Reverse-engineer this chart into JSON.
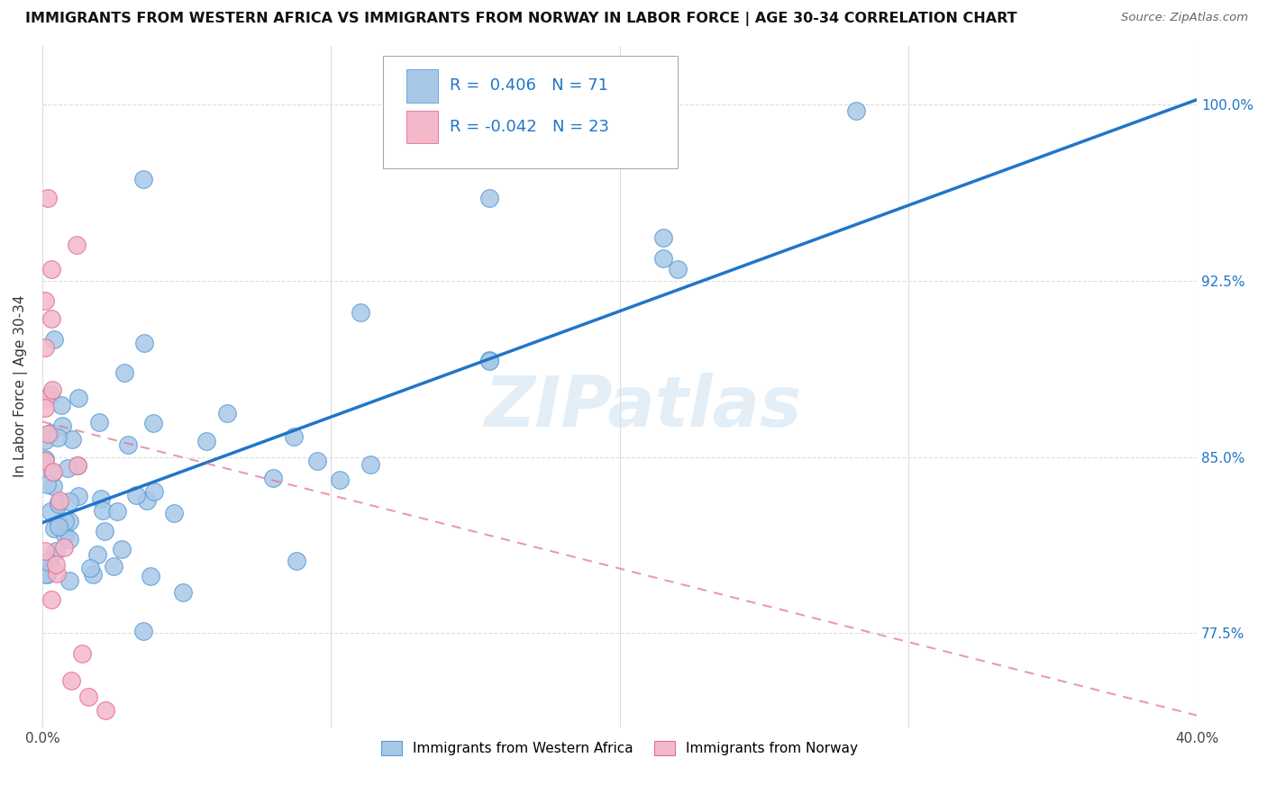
{
  "title": "IMMIGRANTS FROM WESTERN AFRICA VS IMMIGRANTS FROM NORWAY IN LABOR FORCE | AGE 30-34 CORRELATION CHART",
  "source": "Source: ZipAtlas.com",
  "ylabel": "In Labor Force | Age 30-34",
  "xlim": [
    0.0,
    0.4
  ],
  "ylim": [
    0.735,
    1.025
  ],
  "xtick_labels": [
    "0.0%",
    "",
    "",
    "",
    "40.0%"
  ],
  "xtick_vals": [
    0.0,
    0.1,
    0.2,
    0.3,
    0.4
  ],
  "ytick_labels": [
    "77.5%",
    "85.0%",
    "92.5%",
    "100.0%"
  ],
  "ytick_vals": [
    0.775,
    0.85,
    0.925,
    1.0
  ],
  "blue_scatter_color": "#a8c8e8",
  "blue_edge_color": "#5b9bd5",
  "pink_scatter_color": "#f4b8cb",
  "pink_edge_color": "#e07090",
  "blue_line_color": "#2175c8",
  "pink_line_color": "#e07090",
  "label_color": "#2175c8",
  "grid_color": "#dddddd",
  "R_blue": 0.406,
  "N_blue": 71,
  "R_pink": -0.042,
  "N_pink": 23,
  "legend_label_blue": "Immigrants from Western Africa",
  "legend_label_pink": "Immigrants from Norway",
  "watermark": "ZIPatlas",
  "blue_line_x0": 0.0,
  "blue_line_y0": 0.822,
  "blue_line_x1": 0.4,
  "blue_line_y1": 1.002,
  "pink_line_x0": 0.0,
  "pink_line_y0": 0.865,
  "pink_line_x1": 0.4,
  "pink_line_y1": 0.74
}
